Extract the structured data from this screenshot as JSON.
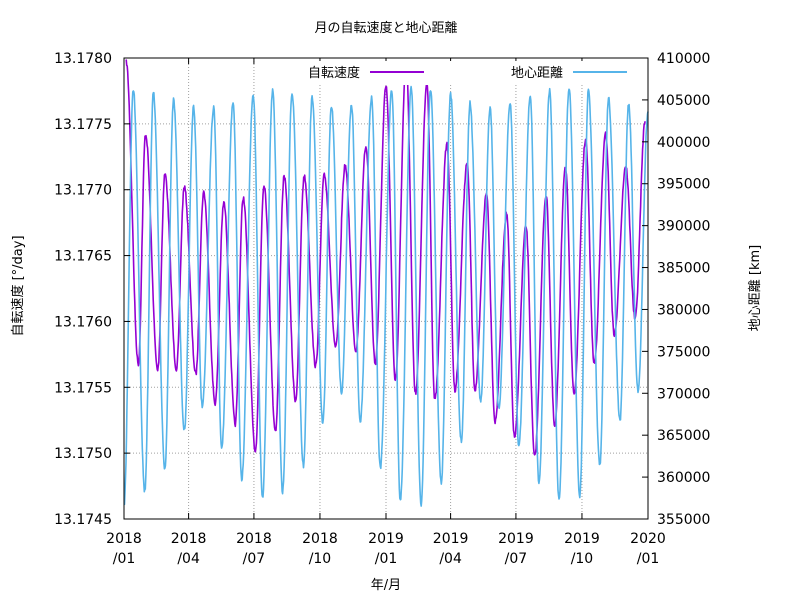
{
  "chart_data": {
    "type": "line",
    "title": "月の自転速度と地心距離",
    "xlabel": "年/月",
    "ylabel": "自転速度 [°/day]",
    "y2label": "地心距離 [km]",
    "x_range": [
      "2018-01-01",
      "2020-01-01"
    ],
    "ylim": [
      13.1745,
      13.178
    ],
    "y2lim": [
      355000,
      410000
    ],
    "grid": true,
    "legend_position": "top",
    "x_ticks": [
      {
        "date": "2018-01-01",
        "l1": "2018",
        "l2": "/01"
      },
      {
        "date": "2018-04-01",
        "l1": "2018",
        "l2": "/04"
      },
      {
        "date": "2018-07-01",
        "l1": "2018",
        "l2": "/07"
      },
      {
        "date": "2018-10-01",
        "l1": "2018",
        "l2": "/10"
      },
      {
        "date": "2019-01-01",
        "l1": "2019",
        "l2": "/01"
      },
      {
        "date": "2019-04-01",
        "l1": "2019",
        "l2": "/04"
      },
      {
        "date": "2019-07-01",
        "l1": "2019",
        "l2": "/07"
      },
      {
        "date": "2019-10-01",
        "l1": "2019",
        "l2": "/10"
      },
      {
        "date": "2020-01-01",
        "l1": "2020",
        "l2": "/01"
      }
    ],
    "y_ticks": [
      "13.1745",
      "13.1750",
      "13.1755",
      "13.1760",
      "13.1765",
      "13.1770",
      "13.1775",
      "13.1780"
    ],
    "y2_ticks": [
      "355000",
      "360000",
      "365000",
      "370000",
      "375000",
      "380000",
      "385000",
      "390000",
      "395000",
      "400000",
      "405000",
      "410000"
    ],
    "series": [
      {
        "name": "自転速度",
        "axis": "y1",
        "color": "#9400d3",
        "peaks": [
          [
            "2018-01-04",
            13.17797
          ],
          [
            "2018-01-21",
            13.17568
          ],
          [
            "2018-01-31",
            13.17742
          ],
          [
            "2018-02-17",
            13.17563
          ],
          [
            "2018-02-27",
            13.17712
          ],
          [
            "2018-03-15",
            13.17564
          ],
          [
            "2018-03-26",
            13.17702
          ],
          [
            "2018-04-11",
            13.1756
          ],
          [
            "2018-04-22",
            13.17698
          ],
          [
            "2018-05-08",
            13.17538
          ],
          [
            "2018-05-20",
            13.1769
          ],
          [
            "2018-06-05",
            13.17522
          ],
          [
            "2018-06-16",
            13.17694
          ],
          [
            "2018-07-03",
            13.17502
          ],
          [
            "2018-07-15",
            13.17704
          ],
          [
            "2018-07-31",
            13.17517
          ],
          [
            "2018-08-12",
            13.1771
          ],
          [
            "2018-08-28",
            13.1754
          ],
          [
            "2018-09-09",
            13.1771
          ],
          [
            "2018-09-25",
            13.17566
          ],
          [
            "2018-10-07",
            13.17711
          ],
          [
            "2018-10-23",
            13.1758
          ],
          [
            "2018-11-05",
            13.17718
          ],
          [
            "2018-11-20",
            13.17578
          ],
          [
            "2018-12-04",
            13.17733
          ],
          [
            "2018-12-17",
            13.17568
          ],
          [
            "2019-01-01",
            13.17778
          ],
          [
            "2019-01-14",
            13.17556
          ],
          [
            "2019-01-29",
            13.17796
          ],
          [
            "2019-02-11",
            13.17545
          ],
          [
            "2019-02-27",
            13.1778
          ],
          [
            "2019-03-10",
            13.1754
          ],
          [
            "2019-03-27",
            13.17735
          ],
          [
            "2019-04-07",
            13.17548
          ],
          [
            "2019-04-24",
            13.1772
          ],
          [
            "2019-05-05",
            13.17548
          ],
          [
            "2019-05-21",
            13.17697
          ],
          [
            "2019-06-02",
            13.17524
          ],
          [
            "2019-06-18",
            13.17682
          ],
          [
            "2019-06-29",
            13.17512
          ],
          [
            "2019-07-15",
            13.17672
          ],
          [
            "2019-07-27",
            13.17497
          ],
          [
            "2019-08-12",
            13.17696
          ],
          [
            "2019-08-24",
            13.1752
          ],
          [
            "2019-09-08",
            13.17716
          ],
          [
            "2019-09-20",
            13.17545
          ],
          [
            "2019-10-06",
            13.17738
          ],
          [
            "2019-10-18",
            13.17568
          ],
          [
            "2019-11-03",
            13.17742
          ],
          [
            "2019-11-15",
            13.1759
          ],
          [
            "2019-12-01",
            13.17718
          ],
          [
            "2019-12-14",
            13.17602
          ],
          [
            "2019-12-28",
            13.17752
          ]
        ]
      },
      {
        "name": "地心距離",
        "axis": "y2",
        "color": "#56b4e9",
        "peaks": [
          [
            "2018-01-01",
            356700
          ],
          [
            "2018-01-14",
            406200
          ],
          [
            "2018-01-30",
            358300
          ],
          [
            "2018-02-11",
            405800
          ],
          [
            "2018-02-27",
            361000
          ],
          [
            "2018-03-11",
            405000
          ],
          [
            "2018-03-26",
            365500
          ],
          [
            "2018-04-08",
            404200
          ],
          [
            "2018-04-20",
            368500
          ],
          [
            "2018-05-06",
            404000
          ],
          [
            "2018-05-17",
            363500
          ],
          [
            "2018-06-02",
            404800
          ],
          [
            "2018-06-14",
            359800
          ],
          [
            "2018-06-30",
            405500
          ],
          [
            "2018-07-13",
            357500
          ],
          [
            "2018-07-27",
            406100
          ],
          [
            "2018-08-10",
            358300
          ],
          [
            "2018-08-23",
            405900
          ],
          [
            "2018-09-08",
            361400
          ],
          [
            "2018-09-20",
            405300
          ],
          [
            "2018-10-05",
            366400
          ],
          [
            "2018-10-17",
            404200
          ],
          [
            "2018-10-31",
            370200
          ],
          [
            "2018-11-14",
            404300
          ],
          [
            "2018-11-26",
            366600
          ],
          [
            "2018-12-12",
            405200
          ],
          [
            "2018-12-24",
            361100
          ],
          [
            "2019-01-09",
            406100
          ],
          [
            "2019-01-21",
            357300
          ],
          [
            "2019-02-05",
            406500
          ],
          [
            "2019-02-19",
            356800
          ],
          [
            "2019-03-04",
            406300
          ],
          [
            "2019-03-19",
            359400
          ],
          [
            "2019-04-01",
            405600
          ],
          [
            "2019-04-16",
            364200
          ],
          [
            "2019-04-28",
            404600
          ],
          [
            "2019-05-13",
            369000
          ],
          [
            "2019-05-26",
            404100
          ],
          [
            "2019-06-07",
            368100
          ],
          [
            "2019-06-23",
            404500
          ],
          [
            "2019-07-05",
            363700
          ],
          [
            "2019-07-21",
            405500
          ],
          [
            "2019-08-02",
            359400
          ],
          [
            "2019-08-17",
            406200
          ],
          [
            "2019-08-30",
            357200
          ],
          [
            "2019-09-13",
            406400
          ],
          [
            "2019-09-28",
            357800
          ],
          [
            "2019-10-10",
            406100
          ],
          [
            "2019-10-26",
            361300
          ],
          [
            "2019-11-07",
            405200
          ],
          [
            "2019-11-23",
            366700
          ],
          [
            "2019-12-05",
            404500
          ],
          [
            "2019-12-18",
            370300
          ],
          [
            "2020-01-01",
            403600
          ]
        ]
      }
    ]
  }
}
